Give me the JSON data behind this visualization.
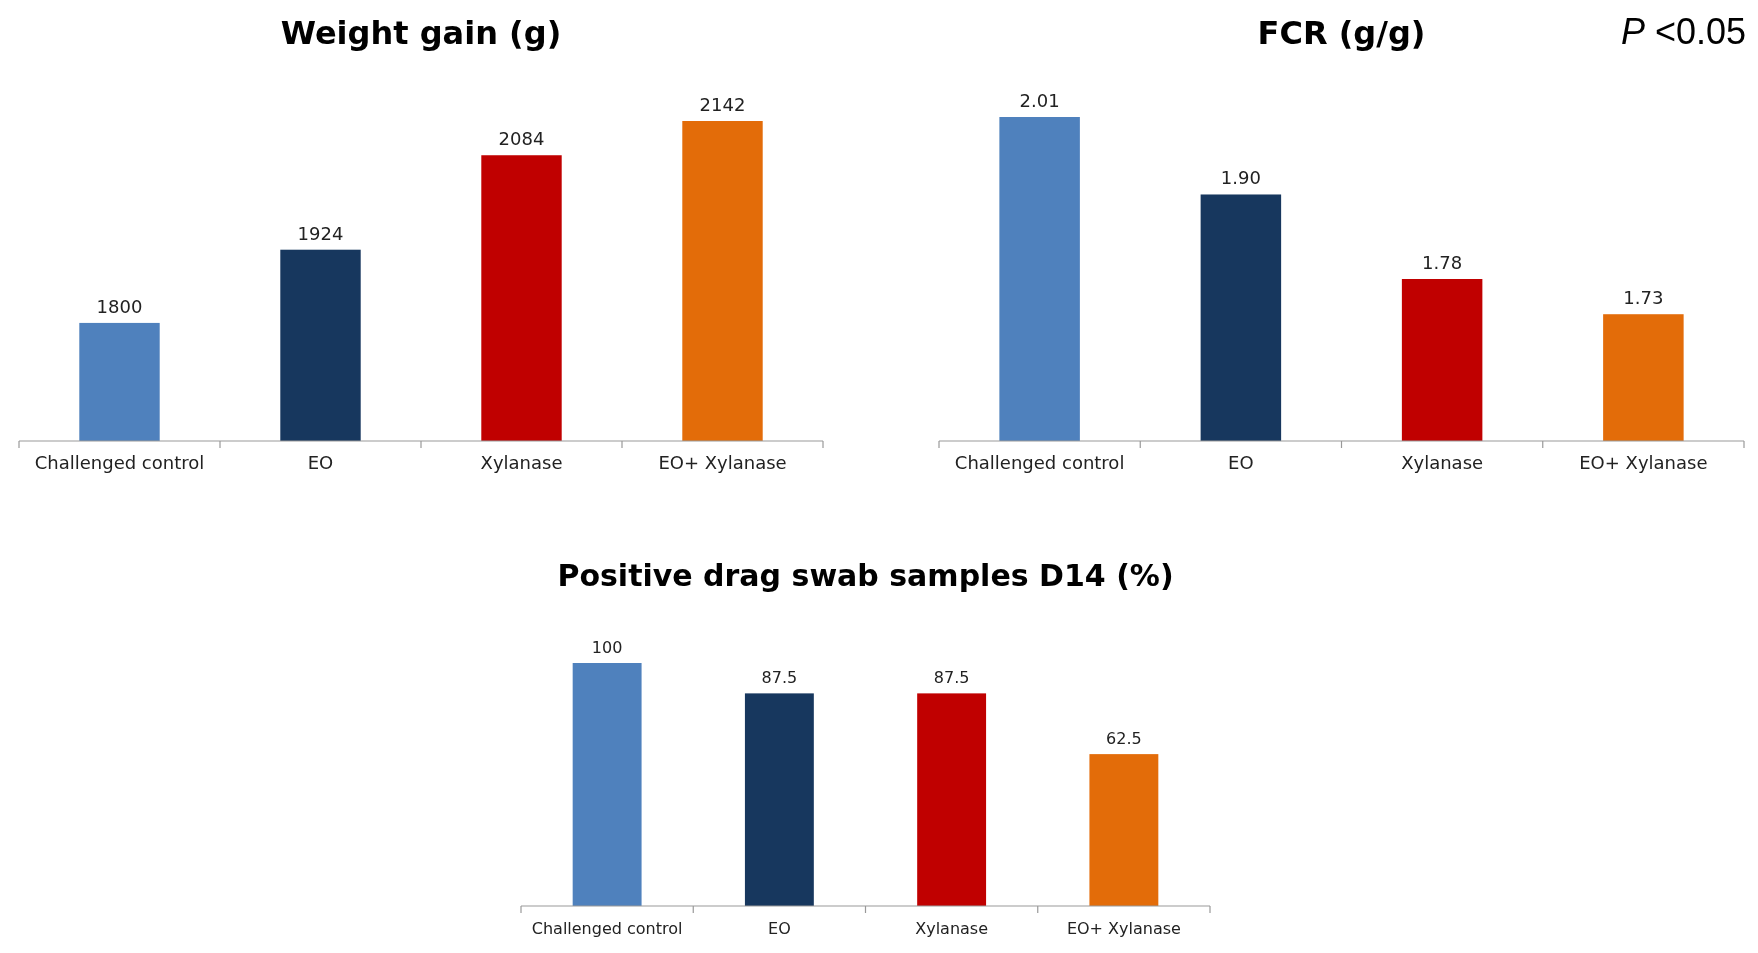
{
  "chart_data": [
    {
      "type": "bar",
      "title": "Weight gain (g)",
      "categories": [
        "Challenged control",
        "EO",
        "Xylanase",
        "EO+ Xylanase"
      ],
      "values": [
        1800,
        1924,
        2084,
        2142
      ],
      "colors": [
        "#4f81bd",
        "#17375e",
        "#c00000",
        "#e36c09"
      ],
      "ylim": [
        1600,
        2142
      ],
      "tick_labels": "x",
      "data_labels": true
    },
    {
      "type": "bar",
      "title": "FCR (g/g)",
      "categories": [
        "Challenged control",
        "EO",
        "Xylanase",
        "EO+ Xylanase"
      ],
      "values": [
        2.01,
        1.9,
        1.78,
        1.73
      ],
      "value_labels": [
        "2.01",
        "1.90",
        "1.78",
        "1.73"
      ],
      "colors": [
        "#4f81bd",
        "#17375e",
        "#c00000",
        "#e36c09"
      ],
      "ylim": [
        1.55,
        2.01
      ],
      "tick_labels": "x",
      "annotations": [
        "P <0.05"
      ]
    },
    {
      "type": "bar",
      "title": "Positive drag swab samples D14 (%)",
      "categories": [
        "Challenged control",
        "EO",
        "Xylanase",
        "EO+ Xylanase"
      ],
      "values": [
        100,
        87.5,
        87.5,
        62.5
      ],
      "colors": [
        "#4f81bd",
        "#17375e",
        "#c00000",
        "#e36c09"
      ],
      "ylim": [
        0,
        100
      ],
      "tick_labels": "x",
      "data_labels": true
    }
  ]
}
